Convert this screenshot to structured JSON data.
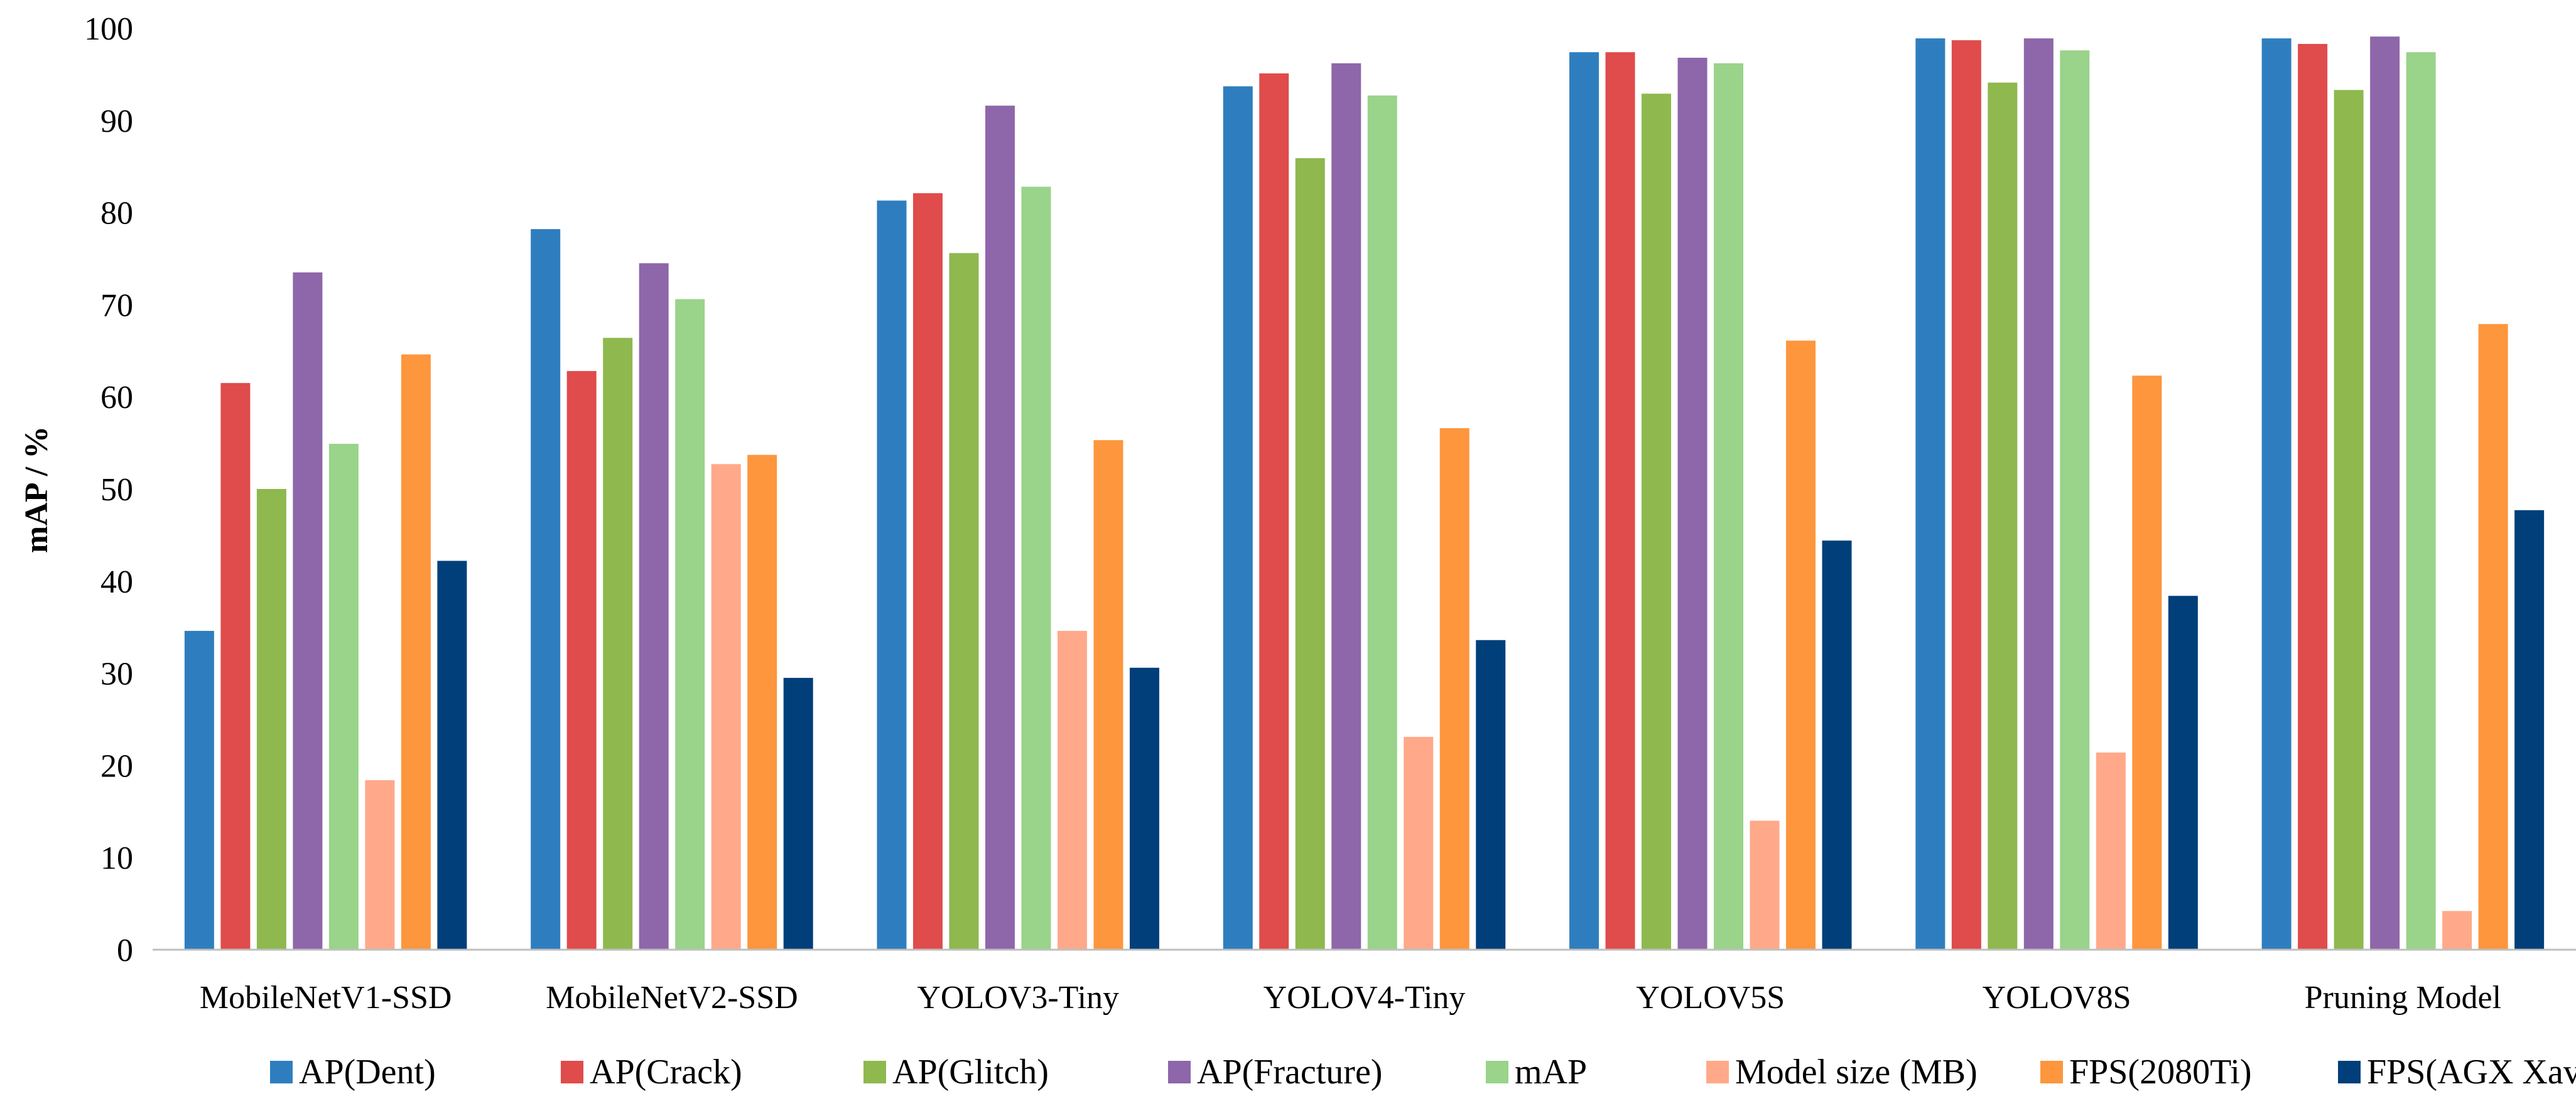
{
  "chart_data": {
    "type": "bar",
    "title": "",
    "xlabel": "",
    "ylabel": "mAP  / %",
    "ylim": [
      0,
      100
    ],
    "yticks": [
      0,
      10,
      20,
      30,
      40,
      50,
      60,
      70,
      80,
      90,
      100
    ],
    "grid": false,
    "legend_position": "bottom",
    "categories": [
      "MobileNetV1-SSD",
      "MobileNetV2-SSD",
      "YOLOV3-Tiny",
      "YOLOV4-Tiny",
      "YOLOV5S",
      "YOLOV8S",
      "Pruning Model"
    ],
    "series": [
      {
        "name": "AP(Dent)",
        "color": "#2e7ebf",
        "values": [
          34.6,
          78.2,
          81.3,
          93.7,
          97.4,
          98.9,
          98.9
        ]
      },
      {
        "name": "AP(Crack)",
        "color": "#e04b4b",
        "values": [
          61.5,
          62.8,
          82.1,
          95.1,
          97.4,
          98.7,
          98.3
        ]
      },
      {
        "name": "AP(Glitch)",
        "color": "#8fb84f",
        "values": [
          50.0,
          66.4,
          75.6,
          85.9,
          92.9,
          94.1,
          93.3
        ]
      },
      {
        "name": "AP(Fracture)",
        "color": "#8e66aa",
        "values": [
          73.5,
          74.5,
          91.6,
          96.2,
          96.8,
          98.9,
          99.1
        ]
      },
      {
        "name": "mAP",
        "color": "#9ad38a",
        "values": [
          54.9,
          70.6,
          82.8,
          92.7,
          96.2,
          97.6,
          97.4
        ]
      },
      {
        "name": "Model size (MB)",
        "color": "#ffa98a",
        "values": [
          18.4,
          52.7,
          34.6,
          23.1,
          14.0,
          21.4,
          4.2
        ]
      },
      {
        "name": "FPS(2080Ti)",
        "color": "#fd963d",
        "values": [
          64.6,
          53.7,
          55.3,
          56.6,
          66.1,
          62.3,
          67.9
        ]
      },
      {
        "name": "FPS(AGX Xavier)",
        "color": "#003f7a",
        "values": [
          42.2,
          29.5,
          30.6,
          33.6,
          44.4,
          38.4,
          47.7
        ]
      }
    ]
  }
}
